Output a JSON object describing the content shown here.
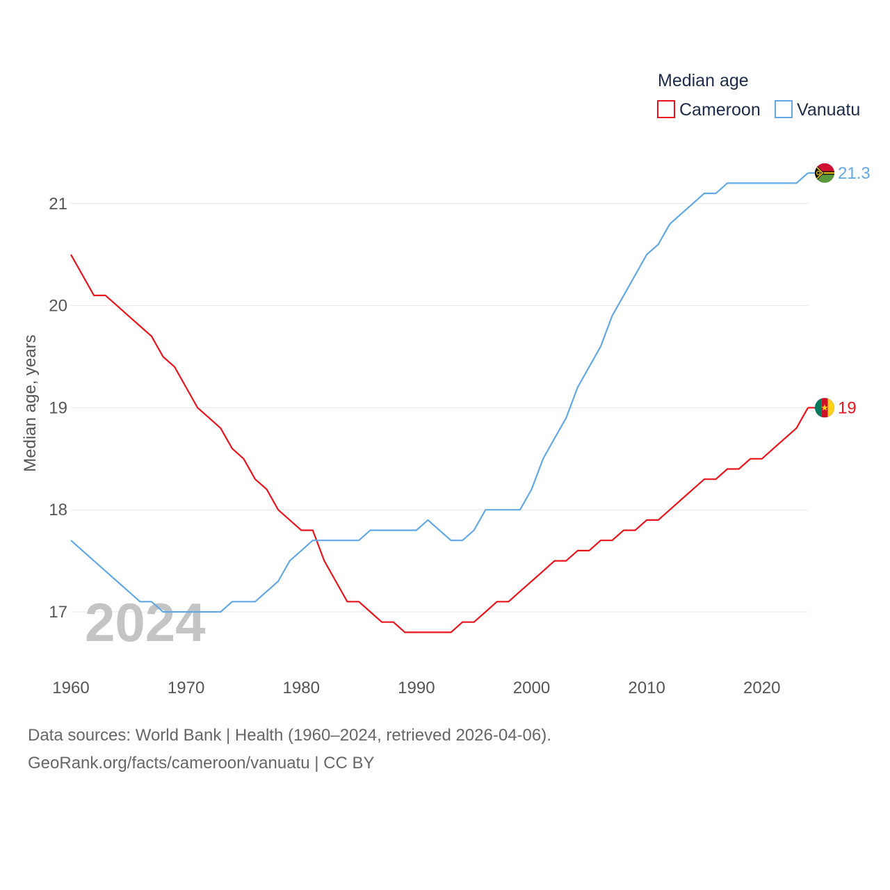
{
  "chart_data": {
    "type": "line",
    "title": "",
    "xlabel": "",
    "ylabel": "Median age, years",
    "xlim": [
      1960,
      2024
    ],
    "ylim": [
      16.4,
      21.6
    ],
    "x_ticks": [
      1960,
      1970,
      1980,
      1990,
      2000,
      2010,
      2020
    ],
    "y_ticks": [
      17,
      18,
      19,
      20,
      21
    ],
    "grid": true,
    "legend": {
      "title": "Median age",
      "placement": "top-right"
    },
    "watermark": "2024",
    "x": [
      1960,
      1961,
      1962,
      1963,
      1964,
      1965,
      1966,
      1967,
      1968,
      1969,
      1970,
      1971,
      1972,
      1973,
      1974,
      1975,
      1976,
      1977,
      1978,
      1979,
      1980,
      1981,
      1982,
      1983,
      1984,
      1985,
      1986,
      1987,
      1988,
      1989,
      1990,
      1991,
      1992,
      1993,
      1994,
      1995,
      1996,
      1997,
      1998,
      1999,
      2000,
      2001,
      2002,
      2003,
      2004,
      2005,
      2006,
      2007,
      2008,
      2009,
      2010,
      2011,
      2012,
      2013,
      2014,
      2015,
      2016,
      2017,
      2018,
      2019,
      2020,
      2021,
      2022,
      2023,
      2024
    ],
    "series": [
      {
        "name": "Cameroon",
        "color": "#e8141c",
        "end_label": "19",
        "flag": "cameroon-flag",
        "values": [
          20.5,
          20.3,
          20.1,
          20.1,
          20.0,
          19.9,
          19.8,
          19.7,
          19.5,
          19.4,
          19.2,
          19.0,
          18.9,
          18.8,
          18.6,
          18.5,
          18.3,
          18.2,
          18.0,
          17.9,
          17.8,
          17.8,
          17.5,
          17.3,
          17.1,
          17.1,
          17.0,
          16.9,
          16.9,
          16.8,
          16.8,
          16.8,
          16.8,
          16.8,
          16.9,
          16.9,
          17.0,
          17.1,
          17.1,
          17.2,
          17.3,
          17.4,
          17.5,
          17.5,
          17.6,
          17.6,
          17.7,
          17.7,
          17.8,
          17.8,
          17.9,
          17.9,
          18.0,
          18.1,
          18.2,
          18.3,
          18.3,
          18.4,
          18.4,
          18.5,
          18.5,
          18.6,
          18.7,
          18.8,
          19.0
        ]
      },
      {
        "name": "Vanuatu",
        "color": "#62a8e5",
        "end_label": "21.3",
        "flag": "vanuatu-flag",
        "values": [
          17.7,
          17.6,
          17.5,
          17.4,
          17.3,
          17.2,
          17.1,
          17.1,
          17.0,
          17.0,
          17.0,
          17.0,
          17.0,
          17.0,
          17.1,
          17.1,
          17.1,
          17.2,
          17.3,
          17.5,
          17.6,
          17.7,
          17.7,
          17.7,
          17.7,
          17.7,
          17.8,
          17.8,
          17.8,
          17.8,
          17.8,
          17.9,
          17.8,
          17.7,
          17.7,
          17.8,
          18.0,
          18.0,
          18.0,
          18.0,
          18.2,
          18.5,
          18.7,
          18.9,
          19.2,
          19.4,
          19.6,
          19.9,
          20.1,
          20.3,
          20.5,
          20.6,
          20.8,
          20.9,
          21.0,
          21.1,
          21.1,
          21.2,
          21.2,
          21.2,
          21.2,
          21.2,
          21.2,
          21.2,
          21.3
        ]
      }
    ]
  },
  "footer": {
    "line1": "Data sources: World Bank | Health (1960–2024, retrieved 2026-04-06).",
    "line2": "GeoRank.org/facts/cameroon/vanuatu | CC BY"
  }
}
